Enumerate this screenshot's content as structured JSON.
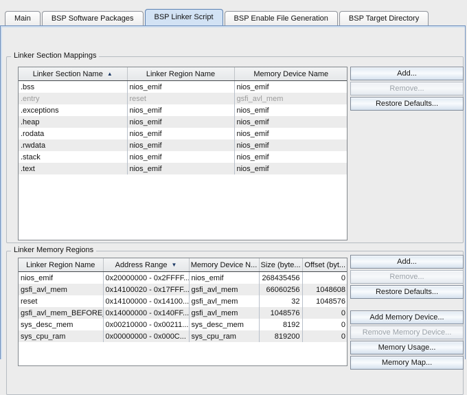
{
  "tabs": [
    {
      "label": "Main",
      "selected": false
    },
    {
      "label": "BSP Software Packages",
      "selected": false
    },
    {
      "label": "BSP Linker Script",
      "selected": true
    },
    {
      "label": "BSP Enable File Generation",
      "selected": false
    },
    {
      "label": "BSP Target Directory",
      "selected": false
    }
  ],
  "section_mappings": {
    "title": "Linker Section Mappings",
    "table": {
      "headers": [
        {
          "label": "Linker Section Name",
          "sort": "asc"
        },
        {
          "label": "Linker Region Name",
          "sort": null
        },
        {
          "label": "Memory Device Name",
          "sort": null
        }
      ],
      "rows": [
        {
          "cells": [
            ".bss",
            "nios_emif",
            "nios_emif"
          ],
          "disabled": false
        },
        {
          "cells": [
            ".entry",
            "reset",
            "gsfi_avl_mem"
          ],
          "disabled": true
        },
        {
          "cells": [
            ".exceptions",
            "nios_emif",
            "nios_emif"
          ],
          "disabled": false
        },
        {
          "cells": [
            ".heap",
            "nios_emif",
            "nios_emif"
          ],
          "disabled": false
        },
        {
          "cells": [
            ".rodata",
            "nios_emif",
            "nios_emif"
          ],
          "disabled": false
        },
        {
          "cells": [
            ".rwdata",
            "nios_emif",
            "nios_emif"
          ],
          "disabled": false
        },
        {
          "cells": [
            ".stack",
            "nios_emif",
            "nios_emif"
          ],
          "disabled": false
        },
        {
          "cells": [
            ".text",
            "nios_emif",
            "nios_emif"
          ],
          "disabled": false
        }
      ]
    },
    "buttons": [
      {
        "label": "Add...",
        "disabled": false,
        "gap_before": false
      },
      {
        "label": "Remove...",
        "disabled": true,
        "gap_before": false
      },
      {
        "label": "Restore Defaults...",
        "disabled": false,
        "gap_before": false
      }
    ]
  },
  "memory_regions": {
    "title": "Linker Memory Regions",
    "table": {
      "headers": [
        {
          "label": "Linker Region Name",
          "sort": null
        },
        {
          "label": "Address Range",
          "sort": "desc"
        },
        {
          "label": "Memory Device N...",
          "sort": null
        },
        {
          "label": "Size (byte...",
          "sort": null
        },
        {
          "label": "Offset (byt...",
          "sort": null
        }
      ],
      "rows": [
        {
          "cells": [
            "nios_emif",
            "0x20000000 - 0x2FFFF...",
            "nios_emif",
            "268435456",
            "0"
          ],
          "disabled": false
        },
        {
          "cells": [
            "gsfi_avl_mem",
            "0x14100020 - 0x17FFF...",
            "gsfi_avl_mem",
            "66060256",
            "1048608"
          ],
          "disabled": false
        },
        {
          "cells": [
            "reset",
            "0x14100000 - 0x14100...",
            "gsfi_avl_mem",
            "32",
            "1048576"
          ],
          "disabled": false
        },
        {
          "cells": [
            "gsfi_avl_mem_BEFORE_R...",
            "0x14000000 - 0x140FF...",
            "gsfi_avl_mem",
            "1048576",
            "0"
          ],
          "disabled": false
        },
        {
          "cells": [
            "sys_desc_mem",
            "0x00210000 - 0x00211...",
            "sys_desc_mem",
            "8192",
            "0"
          ],
          "disabled": false
        },
        {
          "cells": [
            "sys_cpu_ram",
            "0x00000000 - 0x000C...",
            "sys_cpu_ram",
            "819200",
            "0"
          ],
          "disabled": false
        }
      ]
    },
    "buttons": [
      {
        "label": "Add...",
        "disabled": false,
        "gap_before": false
      },
      {
        "label": "Remove...",
        "disabled": true,
        "gap_before": false
      },
      {
        "label": "Restore Defaults...",
        "disabled": false,
        "gap_before": false
      },
      {
        "label": "Add Memory Device...",
        "disabled": false,
        "gap_before": true
      },
      {
        "label": "Remove Memory Device...",
        "disabled": true,
        "gap_before": false
      },
      {
        "label": "Memory Usage...",
        "disabled": false,
        "gap_before": false
      },
      {
        "label": "Memory Map...",
        "disabled": false,
        "gap_before": false
      }
    ]
  },
  "icons": {
    "sort_ascending": "▲",
    "sort_descending": "▼"
  },
  "colors": {
    "selected_tab_bg": "#d2e2f4",
    "content_border": "#6e8fbc",
    "sort_arrow": "#1d3a66",
    "row_stripe": "#ececec",
    "disabled_text": "#9b9b9b"
  }
}
